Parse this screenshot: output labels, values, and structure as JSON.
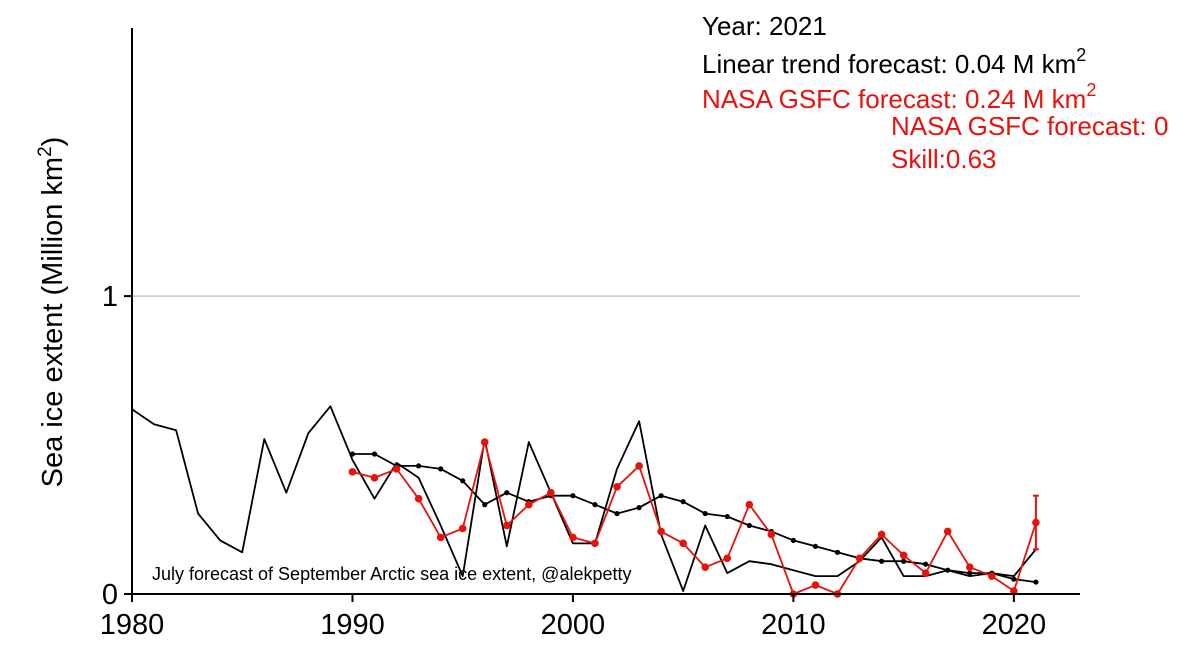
{
  "chart_data": {
    "type": "line",
    "xlim": [
      1980,
      2023
    ],
    "ylim": [
      0,
      1.9
    ],
    "x_ticks": [
      "1980",
      "1990",
      "2000",
      "2010",
      "2020"
    ],
    "y_ticks": [
      "0",
      "1"
    ],
    "gridlines_y": [
      1
    ],
    "ylabel": "Sea ice extent (Million km",
    "ylabel_sup": "2",
    "ylabel_end": ")",
    "annotations": {
      "year": "Year: 2021",
      "linear_trend": "Linear trend forecast: 0.04 M km",
      "linear_trend_sup": "2",
      "nasa": "NASA GSFC forecast: 0.24 M km",
      "nasa_sup": "2",
      "nasa_overflow": "NASA GSFC forecast: 0",
      "skill": "Skill:0.63"
    },
    "credit": "July forecast of September Arctic sea ice extent, @alekpetty",
    "colors": {
      "observed": "#000000",
      "linear_trend": "#000000",
      "nasa": "#e8120c",
      "grid": "#c8c8c8"
    },
    "series": [
      {
        "key": "observed",
        "x": [
          1980,
          1981,
          1982,
          1983,
          1984,
          1985,
          1986,
          1987,
          1988,
          1989,
          1990,
          1991,
          1992,
          1993,
          1994,
          1995,
          1996,
          1997,
          1998,
          1999,
          2000,
          2001,
          2002,
          2003,
          2004,
          2005,
          2006,
          2007,
          2008,
          2009,
          2010,
          2011,
          2012,
          2013,
          2014,
          2015,
          2016,
          2017,
          2018,
          2019,
          2020,
          2021
        ],
        "values": [
          0.62,
          0.57,
          0.55,
          0.27,
          0.18,
          0.14,
          0.52,
          0.34,
          0.54,
          0.63,
          0.45,
          0.32,
          0.44,
          0.39,
          0.23,
          0.06,
          0.52,
          0.16,
          0.51,
          0.34,
          0.17,
          0.17,
          0.42,
          0.58,
          0.2,
          0.01,
          0.23,
          0.07,
          0.11,
          0.1,
          0.08,
          0.06,
          0.06,
          0.11,
          0.19,
          0.06,
          0.06,
          0.08,
          0.06,
          0.07,
          0.06,
          0.15
        ]
      },
      {
        "key": "linear_trend",
        "x": [
          1990,
          1991,
          1992,
          1993,
          1994,
          1995,
          1996,
          1997,
          1998,
          1999,
          2000,
          2001,
          2002,
          2003,
          2004,
          2005,
          2006,
          2007,
          2008,
          2009,
          2010,
          2011,
          2012,
          2013,
          2014,
          2015,
          2016,
          2017,
          2018,
          2019,
          2020,
          2021
        ],
        "values": [
          0.47,
          0.47,
          0.43,
          0.43,
          0.42,
          0.38,
          0.3,
          0.34,
          0.31,
          0.33,
          0.33,
          0.3,
          0.27,
          0.29,
          0.33,
          0.31,
          0.27,
          0.26,
          0.23,
          0.21,
          0.18,
          0.16,
          0.14,
          0.12,
          0.11,
          0.11,
          0.1,
          0.08,
          0.07,
          0.07,
          0.05,
          0.04
        ]
      },
      {
        "key": "nasa",
        "x": [
          1990,
          1991,
          1992,
          1993,
          1994,
          1995,
          1996,
          1997,
          1998,
          1999,
          2000,
          2001,
          2002,
          2003,
          2004,
          2005,
          2006,
          2007,
          2008,
          2009,
          2010,
          2011,
          2012,
          2013,
          2014,
          2015,
          2016,
          2017,
          2018,
          2019,
          2020,
          2021
        ],
        "values": [
          0.41,
          0.39,
          0.42,
          0.32,
          0.19,
          0.22,
          0.51,
          0.23,
          0.3,
          0.34,
          0.19,
          0.17,
          0.36,
          0.43,
          0.21,
          0.17,
          0.09,
          0.12,
          0.3,
          0.2,
          0.0,
          0.03,
          0.0,
          0.12,
          0.2,
          0.13,
          0.07,
          0.21,
          0.09,
          0.06,
          0.01,
          0.24
        ],
        "error_bar": {
          "x": 2021,
          "low": 0.15,
          "high": 0.33
        }
      }
    ]
  }
}
